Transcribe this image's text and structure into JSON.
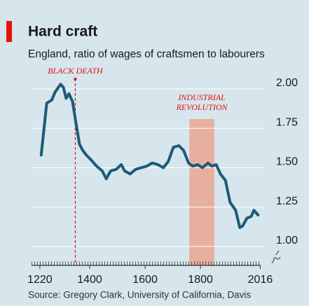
{
  "chart_data": {
    "type": "line",
    "title": "Hard craft",
    "subtitle": "England, ratio of wages of craftsmen to labourers",
    "source": "Source: Gregory Clark, University of California, Davis",
    "x": [
      1225,
      1245,
      1263,
      1275,
      1295,
      1305,
      1315,
      1325,
      1338,
      1350,
      1363,
      1375,
      1388,
      1405,
      1425,
      1445,
      1460,
      1476,
      1496,
      1514,
      1526,
      1546,
      1566,
      1586,
      1606,
      1626,
      1646,
      1666,
      1684,
      1702,
      1722,
      1739,
      1757,
      1772,
      1790,
      1807,
      1827,
      1842,
      1857,
      1872,
      1890,
      1907,
      1927,
      1942,
      1952,
      1968,
      1983,
      1993,
      2008
    ],
    "series": [
      {
        "name": "Ratio of wages",
        "color": "#1b5b78",
        "values": [
          1.58,
          1.91,
          1.93,
          1.98,
          2.03,
          2.01,
          1.94,
          1.97,
          1.92,
          1.79,
          1.65,
          1.61,
          1.58,
          1.55,
          1.51,
          1.48,
          1.43,
          1.48,
          1.49,
          1.52,
          1.48,
          1.46,
          1.49,
          1.5,
          1.51,
          1.53,
          1.52,
          1.5,
          1.54,
          1.63,
          1.64,
          1.61,
          1.53,
          1.51,
          1.52,
          1.5,
          1.53,
          1.51,
          1.52,
          1.46,
          1.42,
          1.28,
          1.23,
          1.12,
          1.13,
          1.18,
          1.19,
          1.23,
          1.2
        ]
      }
    ],
    "xlim": [
      1190,
      2030
    ],
    "xticks": [
      1220,
      1400,
      1600,
      1800,
      2016
    ],
    "ylim": [
      0.88,
      2.1
    ],
    "yticks": [
      {
        "value": 2,
        "label": "2.00"
      },
      {
        "value": 1.75,
        "label": "1.75"
      },
      {
        "value": 1.5,
        "label": "1.50"
      },
      {
        "value": 1.25,
        "label": "1.25"
      },
      {
        "value": 1,
        "label": "1.00"
      }
    ],
    "grid": true,
    "annotations": [
      {
        "text": [
          "BLACK DEATH"
        ],
        "x": 1348,
        "color": "#e3120b"
      },
      {
        "text": [
          "INDUSTRIAL",
          "REVOLUTION"
        ],
        "x0": 1760,
        "x1": 1850,
        "color": "#e9a996"
      }
    ]
  }
}
